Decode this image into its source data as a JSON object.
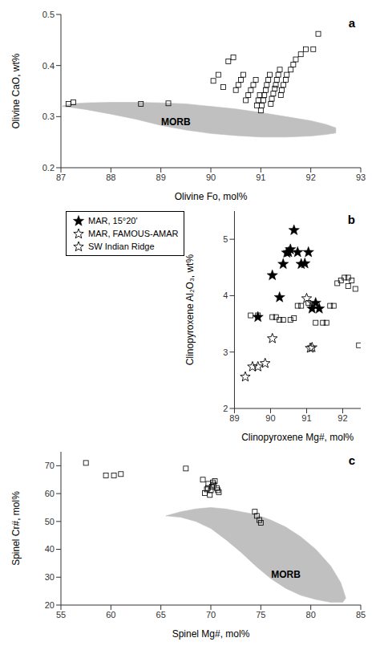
{
  "chart_data": [
    {
      "type": "scatter",
      "title": "a",
      "x_label": "Olivine Fo, mol%",
      "y_label": "Olivine CaO, wt%",
      "xlim": [
        87,
        93
      ],
      "ylim": [
        0.2,
        0.5
      ],
      "xticks": [
        87,
        88,
        89,
        90,
        91,
        92,
        93
      ],
      "yticks": [
        0.2,
        0.3,
        0.4,
        0.5
      ],
      "grid": false,
      "annotations": [
        {
          "text": "MORB",
          "x": 89.3,
          "y": 0.29
        }
      ],
      "series": [
        {
          "type": "polygon",
          "color": "#c0c0c0",
          "x": [
            87.0,
            87.2,
            87.5,
            88.0,
            88.5,
            89.0,
            89.5,
            90.0,
            90.5,
            91.0,
            91.5,
            92.0,
            92.3,
            92.5,
            92.5,
            92.3,
            92.0,
            91.5,
            91.0,
            90.5,
            90.0,
            89.5,
            89.0,
            88.5,
            88.0,
            87.5,
            87.2,
            87.0
          ],
          "y": [
            0.32,
            0.318,
            0.314,
            0.305,
            0.295,
            0.283,
            0.274,
            0.267,
            0.263,
            0.26,
            0.26,
            0.262,
            0.265,
            0.268,
            0.278,
            0.285,
            0.292,
            0.3,
            0.308,
            0.315,
            0.32,
            0.325,
            0.327,
            0.328,
            0.328,
            0.327,
            0.325,
            0.32
          ]
        },
        {
          "type": "scatter",
          "marker": "square_open",
          "color": "#000000",
          "x": [
            87.15,
            87.25,
            88.6,
            89.15,
            90.05,
            90.15,
            90.25,
            90.35,
            90.45,
            90.5,
            90.55,
            90.6,
            90.65,
            90.7,
            90.75,
            90.8,
            90.85,
            90.9,
            90.92,
            90.95,
            90.98,
            91.0,
            91.02,
            91.05,
            91.07,
            91.1,
            91.12,
            91.15,
            91.18,
            91.2,
            91.22,
            91.25,
            91.28,
            91.3,
            91.32,
            91.35,
            91.38,
            91.4,
            91.42,
            91.45,
            91.5,
            91.52,
            91.6,
            91.65,
            91.7,
            91.8,
            91.9,
            92.05,
            92.15
          ],
          "y": [
            0.325,
            0.328,
            0.325,
            0.326,
            0.37,
            0.382,
            0.358,
            0.408,
            0.416,
            0.352,
            0.362,
            0.372,
            0.382,
            0.332,
            0.342,
            0.352,
            0.362,
            0.372,
            0.322,
            0.332,
            0.342,
            0.312,
            0.322,
            0.332,
            0.342,
            0.352,
            0.362,
            0.372,
            0.382,
            0.325,
            0.335,
            0.345,
            0.355,
            0.362,
            0.372,
            0.382,
            0.392,
            0.342,
            0.352,
            0.362,
            0.372,
            0.382,
            0.392,
            0.402,
            0.412,
            0.422,
            0.432,
            0.432,
            0.462
          ]
        }
      ]
    },
    {
      "type": "scatter",
      "title": "b",
      "x_label": "Clinopyroxene Mg#, mol%",
      "y_label": "Clinopyroxene Al₂O₃, wt%",
      "xlim": [
        89,
        92.5
      ],
      "ylim": [
        2,
        5.5
      ],
      "xticks": [
        89,
        90,
        91,
        92
      ],
      "yticks": [
        2,
        3,
        4,
        5
      ],
      "grid": false,
      "legend": "top-left",
      "series": [
        {
          "type": "scatter",
          "marker": "square_open",
          "color": "#000000",
          "x": [
            89.45,
            89.65,
            90.05,
            90.15,
            90.25,
            90.35,
            90.55,
            90.65,
            90.75,
            90.85,
            91.05,
            91.15,
            91.25,
            91.45,
            91.55,
            91.65,
            91.75,
            91.85,
            91.95,
            92.05,
            92.15,
            92.15,
            92.25,
            92.35,
            92.45
          ],
          "y": [
            3.65,
            3.65,
            3.62,
            3.62,
            3.57,
            3.57,
            3.57,
            3.6,
            3.82,
            3.82,
            3.87,
            3.82,
            3.52,
            3.52,
            3.52,
            3.82,
            3.82,
            4.22,
            4.27,
            4.32,
            4.32,
            4.17,
            4.27,
            4.12,
            3.12
          ]
        },
        {
          "type": "scatter",
          "name": "MAR, 15°20'",
          "marker": "star",
          "color": "#000000",
          "x": [
            89.65,
            90.05,
            90.25,
            90.35,
            90.45,
            90.5,
            90.55,
            90.65,
            90.75,
            90.85,
            90.95,
            91.05,
            91.15,
            91.25,
            91.35
          ],
          "y": [
            3.62,
            4.36,
            3.97,
            4.56,
            4.76,
            4.77,
            4.82,
            5.16,
            4.77,
            4.56,
            4.57,
            4.77,
            3.77,
            3.87,
            3.77
          ]
        },
        {
          "type": "scatter",
          "name": "MAR, FAMOUS-AMAR",
          "marker": "star_open",
          "color": "#000000",
          "x": [
            89.3,
            89.5,
            89.65,
            89.85,
            90.05
          ],
          "y": [
            2.56,
            2.74,
            2.74,
            2.8,
            3.24
          ]
        },
        {
          "type": "scatter",
          "name": "SW Indian Ridge",
          "marker": "star_open",
          "color": "#000000",
          "x": [
            91.0,
            91.1,
            91.15
          ],
          "y": [
            3.95,
            3.07,
            3.08
          ]
        }
      ]
    },
    {
      "type": "scatter",
      "title": "c",
      "x_label": "Spinel Mg#, mol%",
      "y_label": "Spinel Cr#, mol%",
      "xlim": [
        55,
        85
      ],
      "ylim": [
        20,
        75
      ],
      "xticks": [
        55,
        60,
        65,
        70,
        75,
        80,
        85
      ],
      "yticks": [
        20,
        30,
        40,
        50,
        60,
        70
      ],
      "grid": false,
      "annotations": [
        {
          "text": "MORB",
          "x": 77.5,
          "y": 31.0
        }
      ],
      "series": [
        {
          "type": "polygon",
          "color": "#c0c0c0",
          "x": [
            65.5,
            67.0,
            68.5,
            70.0,
            71.5,
            73.0,
            74.5,
            76.0,
            77.5,
            79.0,
            80.5,
            82.0,
            83.0,
            83.5,
            83.2,
            82.0,
            80.5,
            79.0,
            77.5,
            76.0,
            74.5,
            73.0,
            71.5,
            70.0,
            68.5,
            67.0,
            65.5
          ],
          "y": [
            52.0,
            53.5,
            54.5,
            55.0,
            54.5,
            53.5,
            52.5,
            50.5,
            48.0,
            44.5,
            40.0,
            34.0,
            28.0,
            22.5,
            21.0,
            21.0,
            22.0,
            23.5,
            26.0,
            29.5,
            34.0,
            39.0,
            43.5,
            47.5,
            50.0,
            51.5,
            52.0
          ]
        },
        {
          "type": "scatter",
          "marker": "square_open",
          "color": "#000000",
          "x": [
            57.5,
            59.5,
            60.3,
            61.0,
            67.5,
            69.2,
            69.4,
            69.6,
            69.7,
            69.75,
            69.9,
            70.0,
            70.1,
            70.2,
            70.3,
            70.4,
            70.6,
            70.7,
            70.8,
            74.4,
            74.6,
            74.85,
            75.0
          ],
          "y": [
            71.0,
            66.5,
            66.5,
            67.0,
            69.0,
            65.0,
            60.2,
            61.5,
            62.0,
            63.5,
            59.5,
            61.2,
            62.5,
            64.0,
            63.2,
            64.5,
            62.0,
            61.2,
            60.5,
            53.5,
            52.0,
            50.5,
            49.5
          ]
        }
      ]
    }
  ]
}
